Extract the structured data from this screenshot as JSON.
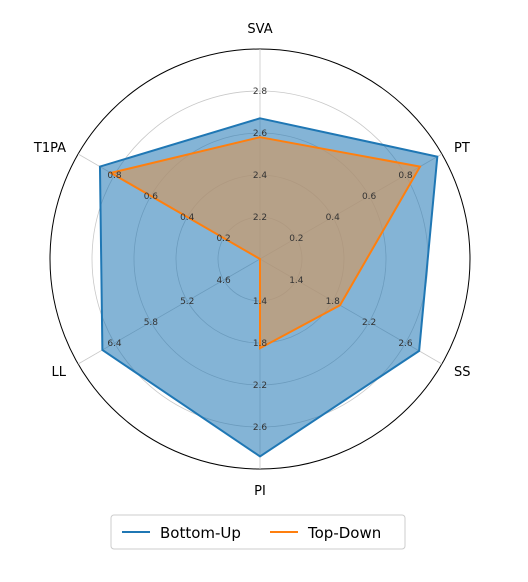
{
  "chart_data": {
    "type": "radar",
    "title": "",
    "axes": [
      "SVA",
      "PT",
      "SS",
      "PI",
      "LL",
      "T1PA"
    ],
    "axis_ticks": {
      "SVA": [
        "2.2",
        "2.4",
        "2.6",
        "2.8"
      ],
      "PT": [
        "0.2",
        "0.4",
        "0.6",
        "0.8"
      ],
      "SS": [
        "1.4",
        "1.8",
        "2.2",
        "2.6"
      ],
      "PI": [
        "1.4",
        "1.8",
        "2.2",
        "2.6"
      ],
      "LL": [
        "4.6",
        "5.2",
        "5.8",
        "6.4"
      ],
      "T1PA": [
        "0.2",
        "0.4",
        "0.6",
        "0.8"
      ]
    },
    "series": [
      {
        "name": "Bottom-Up",
        "color": "#1f77b4",
        "fill": "#1f77b4",
        "values": [
          2.67,
          0.975,
          2.75,
          2.88,
          6.6,
          0.88
        ]
      },
      {
        "name": "Top-Down",
        "color": "#ff7f0e",
        "fill": "#cc9966",
        "values": [
          2.58,
          0.88,
          1.88,
          1.85,
          4.0,
          0.82
        ]
      }
    ],
    "grid": true,
    "legend_position": "bottom"
  },
  "legend": {
    "items": [
      {
        "label": "Bottom-Up",
        "color": "#1f77b4"
      },
      {
        "label": "Top-Down",
        "color": "#ff7f0e"
      }
    ]
  }
}
